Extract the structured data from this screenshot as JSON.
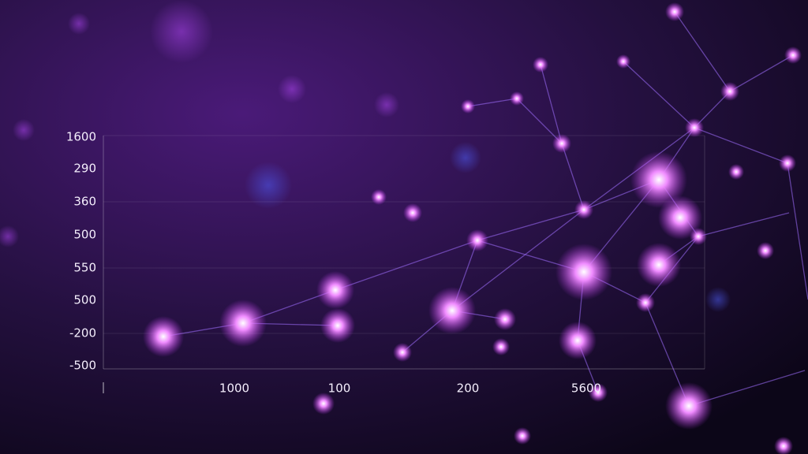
{
  "y_axis_labels": [
    "1600",
    "290",
    "360",
    "500",
    "550",
    "500",
    "-200",
    "-500"
  ],
  "x_axis_labels": [
    "1000",
    "100",
    "200",
    "5600"
  ]
}
